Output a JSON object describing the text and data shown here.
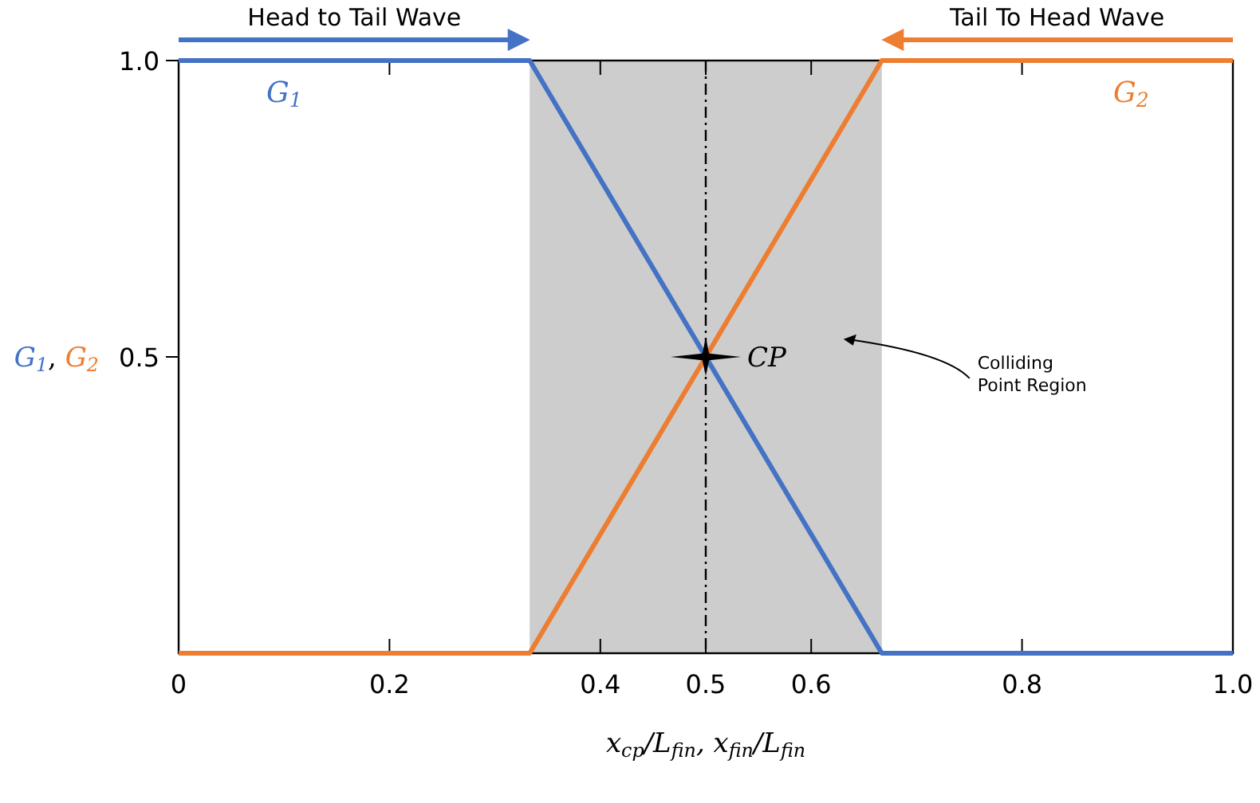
{
  "chart_data": {
    "type": "line",
    "xlabel": "x$_{cp}$/L$_{fin}$, x$_{fin}$/L$_{fin}$",
    "ylabel": "G$_{1}$, G$_{2}$",
    "xlim": [
      0,
      1
    ],
    "ylim": [
      0,
      1
    ],
    "xticks": [
      0,
      0.2,
      0.4,
      0.5,
      0.6,
      0.8,
      {
        "value": 1,
        "label": "1.0"
      }
    ],
    "yticks": [
      0.5,
      {
        "value": 1,
        "label": "1.0"
      }
    ],
    "grid": false,
    "line_style": "solid",
    "marker": "none",
    "series": [
      {
        "name": "G$_{1}$",
        "color": "#4472c4",
        "x": [
          0,
          0.333,
          0.667,
          1
        ],
        "values": [
          1,
          1,
          0,
          0
        ]
      },
      {
        "name": "G$_{2}$",
        "color": "#ed7d31",
        "x": [
          0,
          0.333,
          0.667,
          1
        ],
        "values": [
          0,
          0,
          1,
          1
        ]
      },
      {
        "type": "scatter",
        "color": "#000000",
        "marker": "star",
        "x": [
          0.5
        ],
        "values": [
          0.5
        ]
      }
    ],
    "ref_lines": [
      {
        "axis": "x",
        "value": 0.5,
        "line_style": "dashed",
        "color": "#000000"
      }
    ],
    "bands": [
      {
        "axis": "x",
        "from": 0.333,
        "to": 0.667,
        "label": "Colliding Point Region",
        "color": "#cdcdcd"
      }
    ],
    "annotations": [
      "Head to Tail Wave",
      "Tail To Head Wave",
      {
        "text": "CP",
        "x": 0.5,
        "y": 0.5
      }
    ]
  }
}
